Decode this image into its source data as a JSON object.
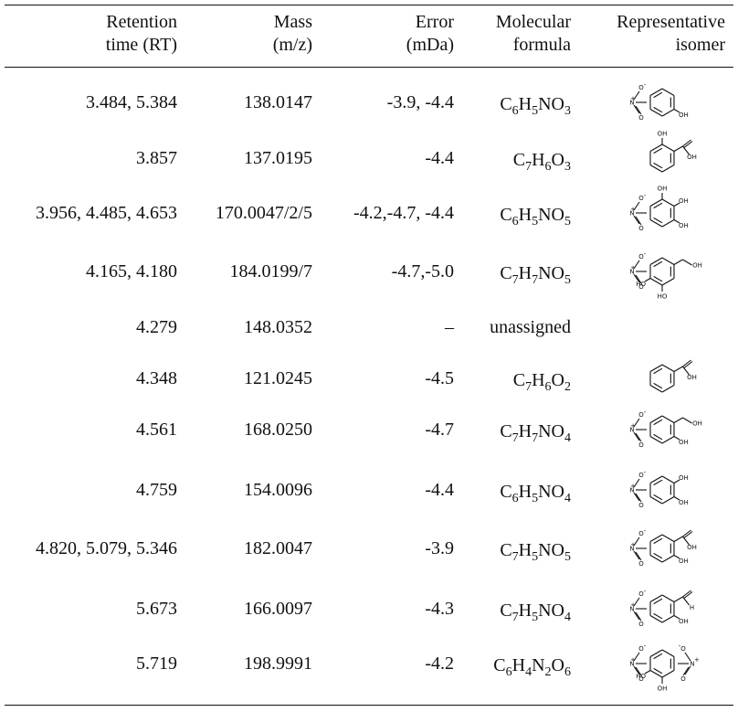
{
  "headers": {
    "rt": [
      "Retention",
      "time (RT)"
    ],
    "mass": [
      "Mass",
      "(m/z)"
    ],
    "error": [
      "Error",
      "(mDa)"
    ],
    "formula": [
      "Molecular",
      "formula"
    ],
    "isomer": [
      "Representative",
      "isomer"
    ]
  },
  "rows": [
    {
      "rt": "3.484, 5.384",
      "mass": "138.0147",
      "error": "-3.9, -4.4",
      "formula": [
        [
          "C",
          "6"
        ],
        [
          "H",
          "5"
        ],
        [
          "NO",
          "3"
        ]
      ],
      "isomer": {
        "nitro": "top",
        "subs": [
          {
            "pos": 3,
            "label": "OH",
            "kind": "oh"
          }
        ]
      }
    },
    {
      "rt": "3.857",
      "mass": "137.0195",
      "error": "-4.4",
      "formula": [
        [
          "C",
          "7"
        ],
        [
          "H",
          "6"
        ],
        [
          "O",
          "3"
        ]
      ],
      "isomer": {
        "nitro": "",
        "subs": [
          {
            "pos": 1,
            "label": "OH",
            "kind": "oh"
          },
          {
            "pos": 2,
            "label": "OH",
            "kind": "acid"
          }
        ]
      }
    },
    {
      "rt": "3.956, 4.485, 4.653",
      "mass": "170.0047/2/5",
      "error": "-4.2,-4.7, -4.4",
      "formula": [
        [
          "C",
          "6"
        ],
        [
          "H",
          "5"
        ],
        [
          "NO",
          "5"
        ]
      ],
      "isomer": {
        "nitro": "left",
        "subs": [
          {
            "pos": 1,
            "label": "OH",
            "kind": "oh"
          },
          {
            "pos": 2,
            "label": "OH",
            "kind": "oh"
          },
          {
            "pos": 3,
            "label": "OH",
            "kind": "oh"
          }
        ]
      }
    },
    {
      "rt": "4.165, 4.180",
      "mass": "184.0199/7",
      "error": "-4.7,-5.0",
      "formula": [
        [
          "C",
          "7"
        ],
        [
          "H",
          "7"
        ],
        [
          "NO",
          "5"
        ]
      ],
      "isomer": {
        "nitro": "left",
        "subs": [
          {
            "pos": 2,
            "label": "OH",
            "kind": "ch2oh"
          },
          {
            "pos": 4,
            "label": "HO",
            "kind": "oh"
          },
          {
            "pos": 5,
            "label": "HO",
            "kind": "oh"
          }
        ]
      }
    },
    {
      "rt": "4.279",
      "mass": "148.0352",
      "error": "–",
      "formula": [
        [
          "unassigned",
          ""
        ]
      ],
      "isomer": null
    },
    {
      "rt": "4.348",
      "mass": "121.0245",
      "error": "-4.5",
      "formula": [
        [
          "C",
          "7"
        ],
        [
          "H",
          "6"
        ],
        [
          "O",
          "2"
        ]
      ],
      "isomer": {
        "nitro": "",
        "subs": [
          {
            "pos": 2,
            "label": "OH",
            "kind": "acid"
          }
        ]
      }
    },
    {
      "rt": "4.561",
      "mass": "168.0250",
      "error": "-4.7",
      "formula": [
        [
          "C",
          "7"
        ],
        [
          "H",
          "7"
        ],
        [
          "NO",
          "4"
        ]
      ],
      "isomer": {
        "nitro": "left",
        "subs": [
          {
            "pos": 2,
            "label": "OH",
            "kind": "ch2oh"
          },
          {
            "pos": 3,
            "label": "OH",
            "kind": "oh"
          }
        ]
      }
    },
    {
      "rt": "4.759",
      "mass": "154.0096",
      "error": "-4.4",
      "formula": [
        [
          "C",
          "6"
        ],
        [
          "H",
          "5"
        ],
        [
          "NO",
          "4"
        ]
      ],
      "isomer": {
        "nitro": "left",
        "subs": [
          {
            "pos": 2,
            "label": "OH",
            "kind": "oh"
          },
          {
            "pos": 3,
            "label": "OH",
            "kind": "oh"
          }
        ]
      }
    },
    {
      "rt": "4.820, 5.079, 5.346",
      "mass": "182.0047",
      "error": "-3.9",
      "formula": [
        [
          "C",
          "7"
        ],
        [
          "H",
          "5"
        ],
        [
          "NO",
          "5"
        ]
      ],
      "isomer": {
        "nitro": "left",
        "subs": [
          {
            "pos": 2,
            "label": "OH",
            "kind": "acid"
          },
          {
            "pos": 3,
            "label": "OH",
            "kind": "oh"
          }
        ]
      }
    },
    {
      "rt": "5.673",
      "mass": "166.0097",
      "error": "-4.3",
      "formula": [
        [
          "C",
          "7"
        ],
        [
          "H",
          "5"
        ],
        [
          "NO",
          "4"
        ]
      ],
      "isomer": {
        "nitro": "left",
        "subs": [
          {
            "pos": 2,
            "label": "H",
            "kind": "ald"
          },
          {
            "pos": 3,
            "label": "OH",
            "kind": "oh"
          }
        ]
      }
    },
    {
      "rt": "5.719",
      "mass": "198.9991",
      "error": "-4.2",
      "formula": [
        [
          "C",
          "6"
        ],
        [
          "H",
          "4"
        ],
        [
          "N",
          "2"
        ],
        [
          "O",
          "6"
        ]
      ],
      "isomer": {
        "nitro": "both",
        "subs": [
          {
            "pos": 4,
            "label": "OH",
            "kind": "oh"
          },
          {
            "pos": 5,
            "label": "HO",
            "kind": "oh"
          }
        ]
      }
    }
  ],
  "nitro_labels": {
    "n": "N",
    "plus": "+",
    "o_minus": "O",
    "minus": "-",
    "o": "O"
  }
}
